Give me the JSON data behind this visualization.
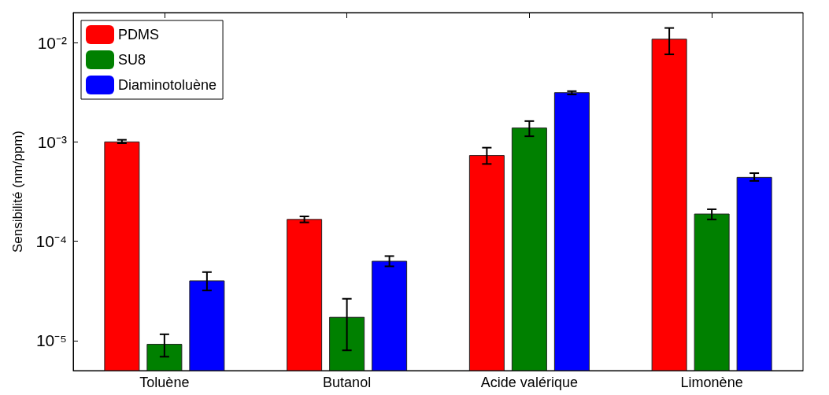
{
  "chart_data": {
    "type": "bar",
    "ylabel": "Sensibilité (nm/ppm)",
    "categories": [
      "Toluène",
      "Butanol",
      "Acide valérique",
      "Limonène"
    ],
    "series": [
      {
        "name": "PDMS",
        "color": "#ff0000",
        "values": [
          0.001,
          0.000166,
          0.00073,
          0.0108
        ],
        "errors": [
          [
            0.00097,
            0.00105
          ],
          [
            0.000155,
            0.000178
          ],
          [
            0.0006,
            0.000875
          ],
          [
            0.0076,
            0.014
          ]
        ]
      },
      {
        "name": "SU8",
        "color": "#008000",
        "values": [
          9.2e-06,
          1.72e-05,
          0.00138,
          0.000188
        ],
        "errors": [
          [
            6.9e-06,
            1.16e-05
          ],
          [
            8e-06,
            2.64e-05
          ],
          [
            0.00114,
            0.00162
          ],
          [
            0.000166,
            0.00021
          ]
        ]
      },
      {
        "name": "Diaminotoluène",
        "color": "#0000ff",
        "values": [
          4e-05,
          6.3e-05,
          0.00313,
          0.00044
        ],
        "errors": [
          [
            3.2e-05,
            4.9e-05
          ],
          [
            5.6e-05,
            7.1e-05
          ],
          [
            0.003,
            0.00324
          ],
          [
            0.000405,
            0.000485
          ]
        ]
      }
    ],
    "log": "y",
    "ylim": [
      5e-06,
      0.02
    ],
    "yticks": [
      {
        "value": 1e-05,
        "label": "10⁻⁵"
      },
      {
        "value": 0.0001,
        "label": "10⁻⁴"
      },
      {
        "value": 0.001,
        "label": "10⁻³"
      },
      {
        "value": 0.01,
        "label": "10⁻²"
      }
    ],
    "legend": "top left",
    "grid": false
  }
}
